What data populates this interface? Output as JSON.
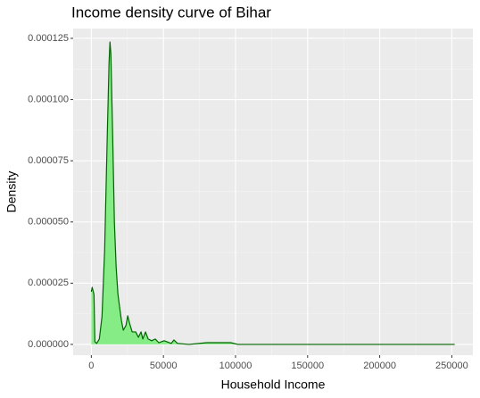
{
  "chart_data": {
    "type": "density",
    "title": "Income density curve of Bihar",
    "x_label": "Household Income",
    "y_label": "Density",
    "x": [
      0,
      600,
      1850,
      2460,
      3700,
      5540,
      7400,
      9240,
      11080,
      12300,
      12930,
      13550,
      14780,
      16010,
      17240,
      18470,
      19700,
      20940,
      22170,
      24020,
      25250,
      26480,
      28330,
      30790,
      32640,
      34480,
      35710,
      37560,
      39410,
      41870,
      44330,
      46800,
      50490,
      55420,
      57270,
      59730,
      67730,
      80050,
      86210,
      96670,
      101600,
      123150,
      184730,
      252000
    ],
    "values": [
      2.15e-05,
      2.33e-05,
      2.04e-05,
      1.1e-06,
      4e-07,
      2.2e-06,
      1.13e-05,
      3.86e-05,
      8.6e-05,
      0.0001152,
      0.0001235,
      0.0001188,
      8.6e-05,
      4.96e-05,
      3.13e-05,
      2.04e-05,
      1.49e-05,
      9.5e-06,
      5.8e-06,
      7.7e-06,
      1.17e-05,
      8.7e-06,
      5.1e-06,
      5.1e-06,
      2.9e-06,
      5.1e-06,
      2.2e-06,
      5.1e-06,
      2.2e-06,
      1.5e-06,
      2.2e-06,
      7e-07,
      1.5e-06,
      4e-07,
      1.8e-06,
      4e-07,
      0,
      7e-07,
      7e-07,
      7e-07,
      0,
      0,
      0,
      0
    ],
    "color": "#006400",
    "fill": "#86ec86",
    "xlim": [
      -12600,
      264600
    ],
    "xticks": [
      0,
      50000,
      100000,
      150000,
      200000,
      250000
    ],
    "ylim": [
      -4.4e-06,
      0.000129
    ],
    "yticks": [
      {
        "value": 0,
        "label": "0.000000"
      },
      2.5e-05,
      {
        "value": 5e-05,
        "label": "0.000050"
      },
      7.5e-05,
      {
        "value": 0.0001,
        "label": "0.000100"
      },
      0.000125
    ],
    "grid": true
  }
}
